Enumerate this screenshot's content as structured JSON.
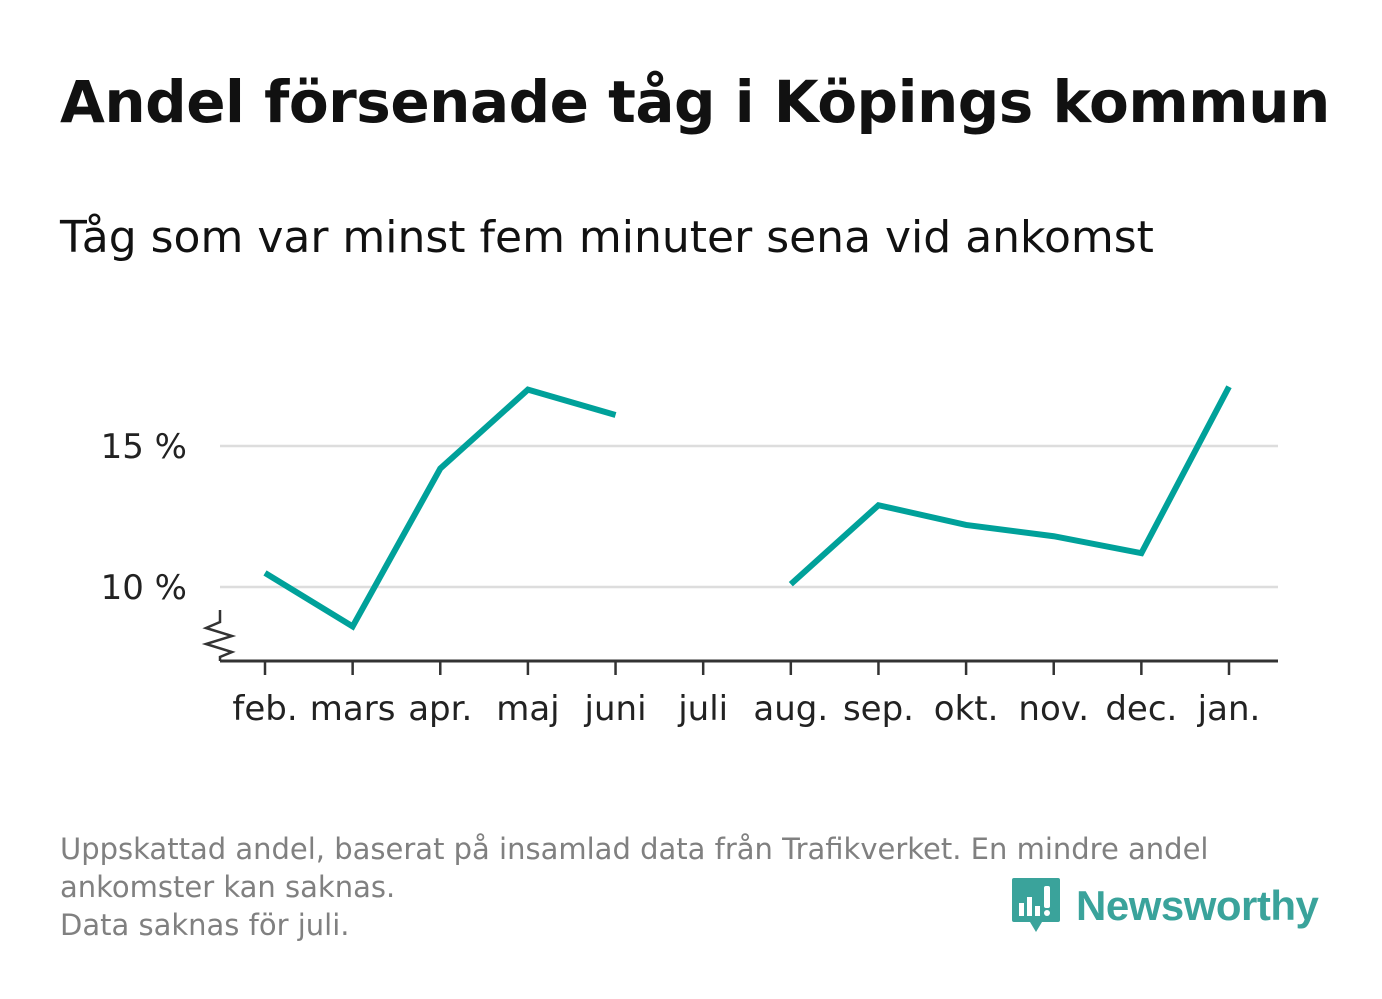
{
  "header": {
    "title": "Andel försenade tåg i Köpings kommun",
    "subtitle": "Tåg som var minst fem minuter sena vid ankomst"
  },
  "chart_data": {
    "type": "line",
    "categories": [
      "feb.",
      "mars",
      "apr.",
      "maj",
      "juni",
      "juli",
      "aug.",
      "sep.",
      "okt.",
      "nov.",
      "dec.",
      "jan."
    ],
    "series": [
      {
        "values": [
          10.5,
          8.6,
          14.2,
          17.0,
          16.1,
          null,
          10.1,
          12.9,
          12.2,
          11.8,
          11.2,
          17.1
        ]
      }
    ],
    "y_ticks": [
      {
        "value": 10,
        "label": "10 %"
      },
      {
        "value": 15,
        "label": "15 %"
      }
    ],
    "ylim": [
      7.4,
      19
    ],
    "grid": true,
    "axis_break": true,
    "line_color": "#00a19a",
    "grid_color": "#dddddd"
  },
  "footer": {
    "notes": [
      "Uppskattad andel, baserat på insamlad data från Trafikverket. En mindre andel",
      "ankomster kan saknas.",
      "Data saknas för juli."
    ],
    "brand": "Newsworthy",
    "brand_color": "#3aa39b",
    "brand_icon": "bar-chart-speech-icon"
  }
}
